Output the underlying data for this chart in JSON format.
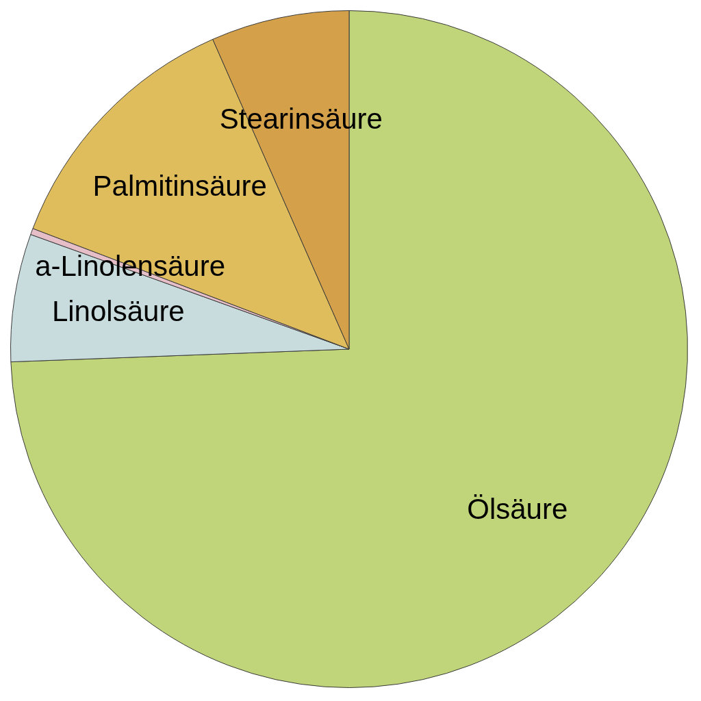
{
  "chart_data": {
    "type": "pie",
    "categories": [
      "Ölsäure",
      "Linolsäure",
      "a-Linolensäure",
      "Palmitinsäure",
      "Stearinsäure"
    ],
    "values": [
      74.4,
      6.1,
      0.3,
      12.6,
      6.6
    ],
    "colors": [
      "#c0d47a",
      "#c8dcde",
      "#e6bec8",
      "#dfbc5c",
      "#d4a14a"
    ],
    "legend": false
  }
}
